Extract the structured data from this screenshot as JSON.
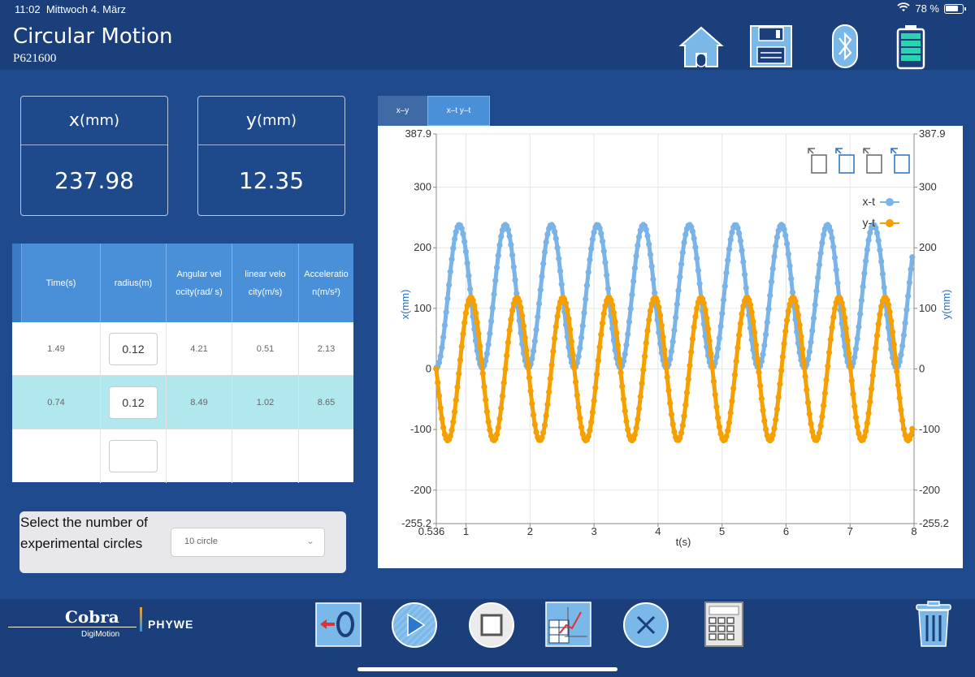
{
  "status": {
    "time": "11:02",
    "date": "Mittwoch 4. März",
    "battery": "78 %"
  },
  "header": {
    "title": "Circular Motion",
    "code": "P621600"
  },
  "cards": {
    "x": {
      "label": "x",
      "unit": "(mm)",
      "value": "237.98"
    },
    "y": {
      "label": "y",
      "unit": "(mm)",
      "value": "12.35"
    }
  },
  "table": {
    "headers": [
      "Time(s)",
      "radius(m)",
      "Angular vel ocity(rad/ s)",
      "linear velo city(m/s)",
      "Acceleratio n(m/s²)"
    ],
    "rows": [
      {
        "time": "1.49",
        "radius": "0.12",
        "angular": "4.21",
        "linear": "0.51",
        "accel": "2.13"
      },
      {
        "time": "0.74",
        "radius": "0.12",
        "angular": "8.49",
        "linear": "1.02",
        "accel": "8.65"
      },
      {
        "time": "",
        "radius": "",
        "angular": "",
        "linear": "",
        "accel": ""
      }
    ]
  },
  "select": {
    "label": "Select the number of experimental circles",
    "value": "10 circle"
  },
  "tabs": [
    "x–y",
    "x–t  y–t"
  ],
  "chart_data": {
    "type": "line",
    "xlabel": "t(s)",
    "ylabel_left": "x(mm)",
    "ylabel_right": "y(mm)",
    "xlim": [
      0.536,
      8
    ],
    "ylim": [
      -255.2,
      387.9
    ],
    "x_ticks": [
      "0.536",
      "1",
      "2",
      "3",
      "4",
      "5",
      "6",
      "7",
      "8"
    ],
    "y_ticks": [
      "387.9",
      "300",
      "200",
      "100",
      "0",
      "-100",
      "-200",
      "-255.2"
    ],
    "series": [
      {
        "name": "x-t",
        "color": "#7ab3e8",
        "midline": 120,
        "amplitude": 118,
        "period": 0.719,
        "phase_t": 0.536,
        "start": "min"
      },
      {
        "name": "y-t",
        "color": "#f5a000",
        "midline": 0,
        "amplitude": 118,
        "period": 0.719,
        "phase_t": 0.536,
        "start": "zero-down"
      }
    ],
    "legend_position": "top-right",
    "grid": true
  },
  "colors": {
    "accent": "#4a90d9",
    "header": "#1a3f7a",
    "background": "#1f4b8e",
    "selected_row": "#b0e8ee"
  },
  "footer": {
    "brand": "Cobra",
    "sub": "DigiMotion",
    "maker": "PHYWE"
  }
}
